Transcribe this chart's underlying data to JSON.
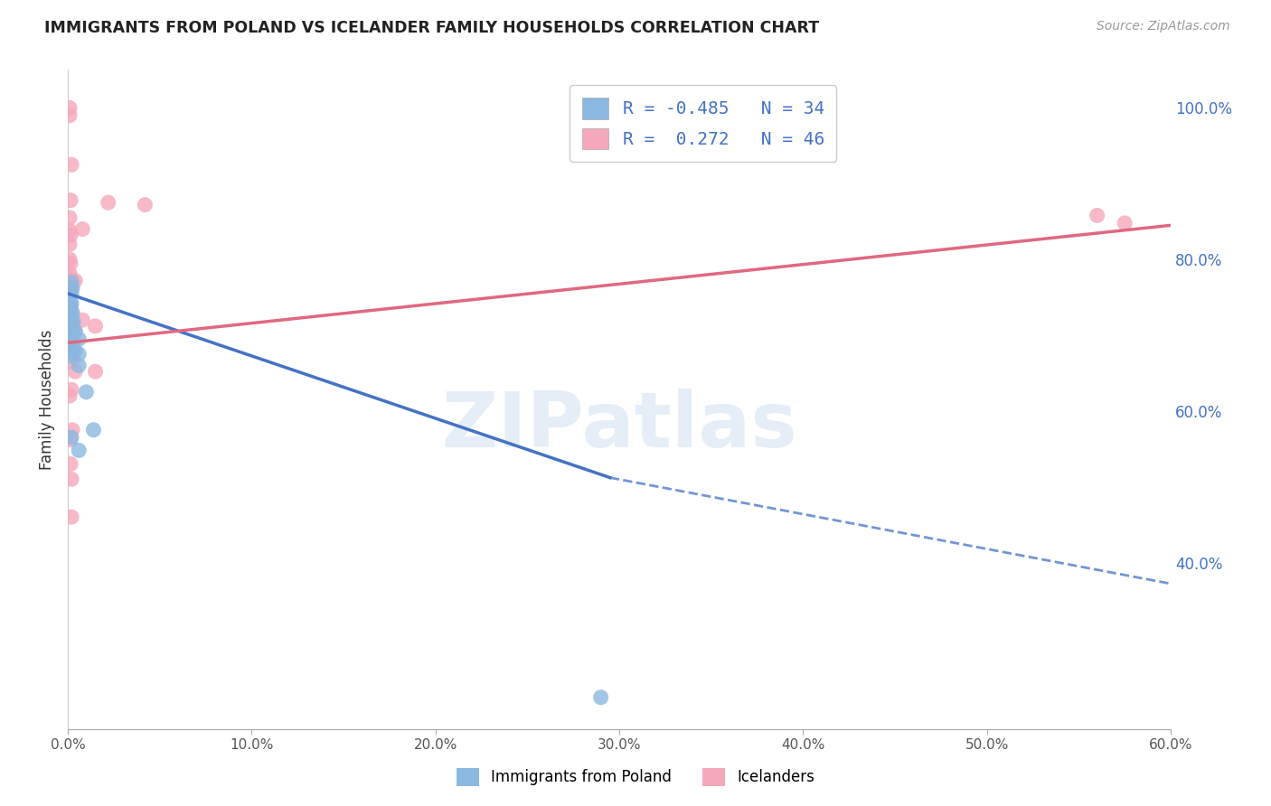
{
  "title": "IMMIGRANTS FROM POLAND VS ICELANDER FAMILY HOUSEHOLDS CORRELATION CHART",
  "source": "Source: ZipAtlas.com",
  "ylabel": "Family Households",
  "legend_label1": "Immigrants from Poland",
  "legend_label2": "Icelanders",
  "R1": -0.485,
  "N1": 34,
  "R2": 0.272,
  "N2": 46,
  "xmin": 0.0,
  "xmax": 0.6,
  "ymin": 0.18,
  "ymax": 1.05,
  "color_blue": "#8BB8E0",
  "color_pink": "#F5A8BB",
  "color_blue_line": "#4472C4",
  "color_pink_line": "#E06880",
  "background": "#ffffff",
  "grid_color": "#dddddd",
  "watermark": "ZIPatlas",
  "blue_points": [
    [
      0.001,
      0.76
    ],
    [
      0.001,
      0.745
    ],
    [
      0.001,
      0.73
    ],
    [
      0.001,
      0.718
    ],
    [
      0.001,
      0.705
    ],
    [
      0.0015,
      0.758
    ],
    [
      0.0015,
      0.74
    ],
    [
      0.0015,
      0.725
    ],
    [
      0.0015,
      0.712
    ],
    [
      0.0015,
      0.698
    ],
    [
      0.0015,
      0.685
    ],
    [
      0.0015,
      0.672
    ],
    [
      0.002,
      0.77
    ],
    [
      0.002,
      0.755
    ],
    [
      0.002,
      0.742
    ],
    [
      0.002,
      0.728
    ],
    [
      0.002,
      0.715
    ],
    [
      0.002,
      0.7
    ],
    [
      0.002,
      0.565
    ],
    [
      0.0025,
      0.762
    ],
    [
      0.0025,
      0.73
    ],
    [
      0.0025,
      0.705
    ],
    [
      0.003,
      0.718
    ],
    [
      0.003,
      0.7
    ],
    [
      0.003,
      0.678
    ],
    [
      0.004,
      0.705
    ],
    [
      0.004,
      0.68
    ],
    [
      0.006,
      0.695
    ],
    [
      0.006,
      0.675
    ],
    [
      0.006,
      0.66
    ],
    [
      0.006,
      0.548
    ],
    [
      0.01,
      0.625
    ],
    [
      0.014,
      0.575
    ],
    [
      0.29,
      0.222
    ]
  ],
  "pink_points": [
    [
      0.001,
      1.0
    ],
    [
      0.001,
      0.99
    ],
    [
      0.001,
      0.855
    ],
    [
      0.001,
      0.838
    ],
    [
      0.001,
      0.82
    ],
    [
      0.001,
      0.8
    ],
    [
      0.001,
      0.782
    ],
    [
      0.001,
      0.762
    ],
    [
      0.001,
      0.735
    ],
    [
      0.001,
      0.722
    ],
    [
      0.001,
      0.708
    ],
    [
      0.001,
      0.692
    ],
    [
      0.001,
      0.62
    ],
    [
      0.0015,
      0.878
    ],
    [
      0.0015,
      0.832
    ],
    [
      0.0015,
      0.795
    ],
    [
      0.0015,
      0.775
    ],
    [
      0.0015,
      0.758
    ],
    [
      0.0015,
      0.738
    ],
    [
      0.0015,
      0.72
    ],
    [
      0.0015,
      0.702
    ],
    [
      0.0015,
      0.682
    ],
    [
      0.0015,
      0.562
    ],
    [
      0.0015,
      0.53
    ],
    [
      0.002,
      0.925
    ],
    [
      0.002,
      0.762
    ],
    [
      0.002,
      0.715
    ],
    [
      0.002,
      0.665
    ],
    [
      0.002,
      0.628
    ],
    [
      0.002,
      0.51
    ],
    [
      0.002,
      0.46
    ],
    [
      0.0025,
      0.772
    ],
    [
      0.0025,
      0.715
    ],
    [
      0.0025,
      0.675
    ],
    [
      0.0025,
      0.575
    ],
    [
      0.004,
      0.772
    ],
    [
      0.004,
      0.705
    ],
    [
      0.004,
      0.652
    ],
    [
      0.008,
      0.84
    ],
    [
      0.008,
      0.72
    ],
    [
      0.015,
      0.712
    ],
    [
      0.015,
      0.652
    ],
    [
      0.022,
      0.875
    ],
    [
      0.042,
      0.872
    ],
    [
      0.56,
      0.858
    ],
    [
      0.575,
      0.848
    ]
  ],
  "xticks": [
    0.0,
    0.1,
    0.2,
    0.3,
    0.4,
    0.5,
    0.6
  ],
  "xtick_labels": [
    "0.0%",
    "10.0%",
    "20.0%",
    "30.0%",
    "40.0%",
    "50.0%",
    "60.0%"
  ],
  "yticks_left": [],
  "yticks_right": [
    0.4,
    0.6,
    0.8,
    1.0
  ],
  "ytick_labels_right": [
    "40.0%",
    "60.0%",
    "80.0%",
    "100.0%"
  ],
  "blue_line_x0": 0.0,
  "blue_line_y0": 0.755,
  "blue_line_x_solid_end": 0.295,
  "blue_line_y_solid_end": 0.512,
  "blue_line_x1": 0.6,
  "blue_line_y1": 0.372,
  "pink_line_x0": 0.0,
  "pink_line_y0": 0.69,
  "pink_line_x1": 0.6,
  "pink_line_y1": 0.845
}
